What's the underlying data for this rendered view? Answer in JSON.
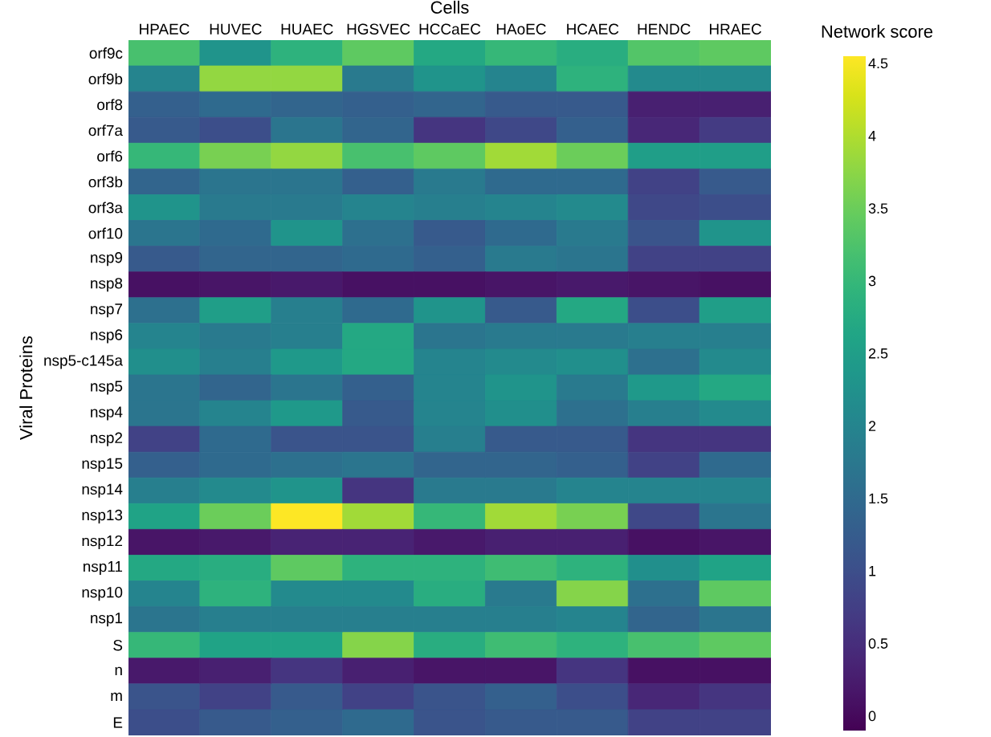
{
  "chart_data": {
    "type": "heatmap",
    "xlabel": "Cells",
    "ylabel": "Viral Proteins",
    "clabel": "Network score",
    "categories": [
      "HPAEC",
      "HUVEC",
      "HUAEC",
      "HGSVEC",
      "HCCaEC",
      "HAoEC",
      "HCAEC",
      "HENDC",
      "HRAEC"
    ],
    "y_categories": [
      "orf9c",
      "orf9b",
      "orf8",
      "orf7a",
      "orf6",
      "orf3b",
      "orf3a",
      "orf10",
      "nsp9",
      "nsp8",
      "nsp7",
      "nsp6",
      "nsp5-c145a",
      "nsp5",
      "nsp4",
      "nsp2",
      "nsp15",
      "nsp14",
      "nsp13",
      "nsp12",
      "nsp11",
      "nsp10",
      "nsp1",
      "S",
      "n",
      "m",
      "E"
    ],
    "cells": [
      [
        3.2,
        2.3,
        2.9,
        3.4,
        2.7,
        3.0,
        2.8,
        3.3,
        3.4
      ],
      [
        2.0,
        3.8,
        3.8,
        1.8,
        2.3,
        2.0,
        2.9,
        2.1,
        2.1
      ],
      [
        1.3,
        1.5,
        1.4,
        1.3,
        1.4,
        1.2,
        1.2,
        0.3,
        0.3
      ],
      [
        1.2,
        1.0,
        1.7,
        1.4,
        0.6,
        0.9,
        1.3,
        0.4,
        0.7
      ],
      [
        3.0,
        3.6,
        3.8,
        3.2,
        3.4,
        3.9,
        3.5,
        2.5,
        2.5
      ],
      [
        1.4,
        1.7,
        1.7,
        1.3,
        1.8,
        1.5,
        1.5,
        0.8,
        1.2
      ],
      [
        2.3,
        1.8,
        1.8,
        2.0,
        1.9,
        2.0,
        2.1,
        0.9,
        1.0
      ],
      [
        1.7,
        1.5,
        2.3,
        1.6,
        1.2,
        1.5,
        1.8,
        1.1,
        2.3
      ],
      [
        1.2,
        1.4,
        1.4,
        1.5,
        1.3,
        1.8,
        1.7,
        0.8,
        0.8
      ],
      [
        0.1,
        0.15,
        0.2,
        0.1,
        0.1,
        0.15,
        0.2,
        0.15,
        0.1
      ],
      [
        1.6,
        2.5,
        1.9,
        1.5,
        2.3,
        1.2,
        2.7,
        1.0,
        2.5
      ],
      [
        2.0,
        1.8,
        1.9,
        2.7,
        1.7,
        1.8,
        1.8,
        1.9,
        1.9
      ],
      [
        2.2,
        1.9,
        2.4,
        2.7,
        2.0,
        2.1,
        2.2,
        1.6,
        2.1
      ],
      [
        1.7,
        1.4,
        1.7,
        1.3,
        2.0,
        2.3,
        1.8,
        2.4,
        2.7
      ],
      [
        1.7,
        2.0,
        2.4,
        1.2,
        2.0,
        2.2,
        1.6,
        1.9,
        2.1
      ],
      [
        0.8,
        1.5,
        1.1,
        1.1,
        1.9,
        1.2,
        1.2,
        0.6,
        0.6
      ],
      [
        1.3,
        1.5,
        1.6,
        1.7,
        1.4,
        1.4,
        1.3,
        0.8,
        1.5
      ],
      [
        1.9,
        2.1,
        2.3,
        0.6,
        1.8,
        1.8,
        2.0,
        2.0,
        2.0
      ],
      [
        2.6,
        3.5,
        4.55,
        3.9,
        3.0,
        3.9,
        3.6,
        0.9,
        1.7
      ],
      [
        0.15,
        0.2,
        0.35,
        0.35,
        0.2,
        0.3,
        0.3,
        0.1,
        0.15
      ],
      [
        2.7,
        2.8,
        3.4,
        2.9,
        2.9,
        3.1,
        2.9,
        2.2,
        2.6
      ],
      [
        2.0,
        2.9,
        2.1,
        2.1,
        2.8,
        1.8,
        3.7,
        1.6,
        3.4
      ],
      [
        1.7,
        1.9,
        1.9,
        1.9,
        1.9,
        1.9,
        2.0,
        1.4,
        1.7
      ],
      [
        3.0,
        2.6,
        2.6,
        3.7,
        2.8,
        3.1,
        2.9,
        3.2,
        3.4
      ],
      [
        0.2,
        0.3,
        0.6,
        0.3,
        0.15,
        0.15,
        0.6,
        0.1,
        0.1
      ],
      [
        1.1,
        0.8,
        1.2,
        0.8,
        1.1,
        1.3,
        1.0,
        0.4,
        0.6
      ],
      [
        1.0,
        1.2,
        1.3,
        1.5,
        1.1,
        1.2,
        1.2,
        0.8,
        0.8
      ]
    ],
    "clim": [
      -0.1,
      4.55
    ],
    "cticks": [
      0,
      0.5,
      1,
      1.5,
      2,
      2.5,
      3,
      3.5,
      4,
      4.5
    ]
  }
}
